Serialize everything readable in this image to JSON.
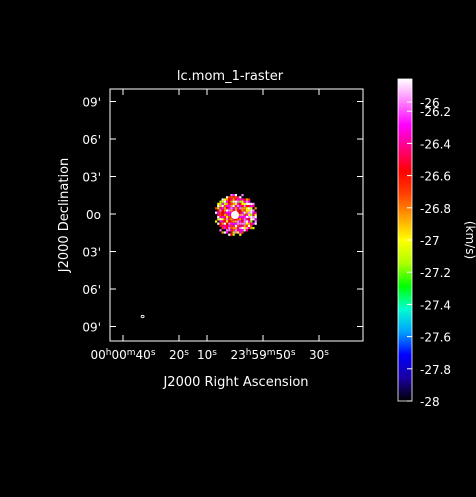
{
  "chart_data": {
    "type": "heatmap",
    "title": "lc.mom_1-raster",
    "xlabel": "J2000 Right Ascension",
    "ylabel": "J2000 Declination",
    "x_ticks": [
      {
        "label": "00h00m40s",
        "value": 40
      },
      {
        "label": "20s",
        "value": 20
      },
      {
        "label": "10s",
        "value": 10
      },
      {
        "label": "23h59m50s",
        "value": -10
      },
      {
        "label": "30s",
        "value": -30
      }
    ],
    "y_ticks": [
      {
        "label": "09'",
        "value": 9
      },
      {
        "label": "06'",
        "value": 6
      },
      {
        "label": "03'",
        "value": 3
      },
      {
        "label": "0o",
        "value": 0
      },
      {
        "label": "03'",
        "value": -3
      },
      {
        "label": "06'",
        "value": -6
      },
      {
        "label": "09'",
        "value": -9
      }
    ],
    "colorbar": {
      "label": "(km/s)",
      "min": -28,
      "max": -26,
      "ticks": [
        {
          "label": "-26",
          "value": -26
        },
        {
          "label": "-26.2",
          "value": -26.2
        },
        {
          "label": "-26.4",
          "value": -26.4
        },
        {
          "label": "-26.6",
          "value": -26.6
        },
        {
          "label": "-26.8",
          "value": -26.8
        },
        {
          "label": "-27",
          "value": -27
        },
        {
          "label": "-27.2",
          "value": -27.2
        },
        {
          "label": "-27.4",
          "value": -27.4
        },
        {
          "label": "-27.6",
          "value": -27.6
        },
        {
          "label": "-27.8",
          "value": -27.8
        },
        {
          "label": "-28",
          "value": -28
        }
      ],
      "stops": [
        "#000000",
        "#1a00a0",
        "#0000ff",
        "#00a0ff",
        "#00ffd0",
        "#00ff00",
        "#b0ff00",
        "#ffff00",
        "#ffa000",
        "#ff4000",
        "#ff0000",
        "#ff0080",
        "#ff00ff",
        "#ff80ff",
        "#ffffff"
      ]
    },
    "source": {
      "center_ra_s": 0,
      "center_dec_arcmin": 0,
      "radius_arcmin": 1.6,
      "mean_velocity": -26.5
    },
    "beam": {
      "ra_s": 33,
      "dec_arcmin": -8.2
    }
  }
}
